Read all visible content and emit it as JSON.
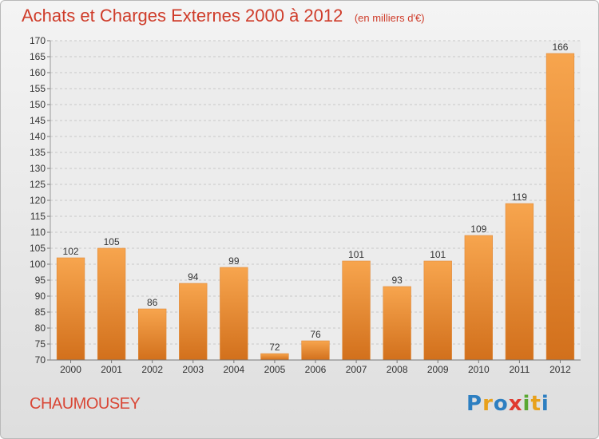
{
  "header": {
    "title": "Achats et Charges Externes 2000 à 2012",
    "unit": "(en milliers d'€)"
  },
  "footer": {
    "city": "CHAUMOUSEY",
    "logo_letters": [
      "P",
      "r",
      "o",
      "x",
      "i",
      "t",
      "i"
    ],
    "logo_colors": [
      "#2d7fc1",
      "#e8a11c",
      "#2d7fc1",
      "#e03a2f",
      "#5aa832",
      "#e8a11c",
      "#2d7fc1"
    ]
  },
  "chart_data": {
    "type": "bar",
    "title": "Achats et Charges Externes 2000 à 2012",
    "xlabel": "",
    "ylabel": "",
    "categories": [
      "2000",
      "2001",
      "2002",
      "2003",
      "2004",
      "2005",
      "2006",
      "2007",
      "2008",
      "2009",
      "2010",
      "2011",
      "2012"
    ],
    "values": [
      102,
      105,
      86,
      94,
      99,
      72,
      76,
      101,
      93,
      101,
      109,
      119,
      166
    ],
    "ylim": [
      70,
      170
    ],
    "ytick_step": 5,
    "grid": true,
    "legend": "none",
    "bar_color_top": "#f7a54e",
    "bar_color_bottom": "#d2701c"
  }
}
